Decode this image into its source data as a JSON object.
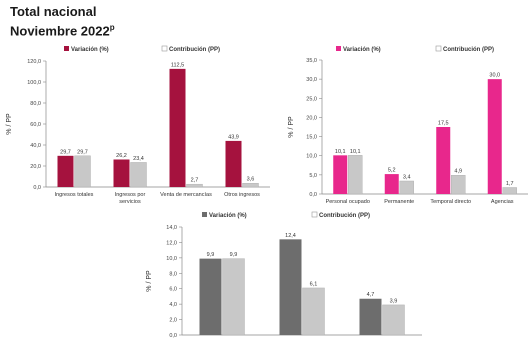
{
  "header": {
    "title": "Total nacional",
    "subtitle": "Noviembre 2022",
    "subtitle_sup": "p"
  },
  "colors": {
    "variacion_crimson": "#a5123e",
    "variacion_pink": "#e8278c",
    "variacion_gray": "#6d6d6d",
    "contribucion": "#c8c8c8"
  },
  "chart_data": [
    {
      "type": "bar",
      "title": "",
      "ylabel": "% / PP",
      "ylim": [
        0,
        120
      ],
      "yticks": [
        "0,0",
        "20,0",
        "40,0",
        "60,0",
        "80,0",
        "100,0",
        "120,0"
      ],
      "legend_placement": "top-left",
      "categories": [
        "Ingresos totales",
        "Ingresos por servicios",
        "Venta de mercancías",
        "Otros ingresos"
      ],
      "series": [
        {
          "name": "Variación (%)",
          "values": [
            29.7,
            26.2,
            112.5,
            43.9
          ],
          "labels": [
            "29,7",
            "26,2",
            "112,5",
            "43,9"
          ]
        },
        {
          "name": "Contribución (PP)",
          "values": [
            29.7,
            23.4,
            2.7,
            3.6
          ],
          "labels": [
            "29,7",
            "23,4",
            "2,7",
            "3,6"
          ]
        }
      ]
    },
    {
      "type": "bar",
      "title": "",
      "ylabel": "% / PP",
      "ylim": [
        0,
        35
      ],
      "yticks": [
        "0,0",
        "5,0",
        "10,0",
        "15,0",
        "20,0",
        "25,0",
        "30,0",
        "35,0"
      ],
      "legend_placement": "top",
      "categories": [
        "Personal ocupado total*",
        "Permanente",
        "Temporal directo",
        "Agencias"
      ],
      "series": [
        {
          "name": "Variación (%)",
          "values": [
            10.1,
            5.2,
            17.5,
            30.0
          ],
          "labels": [
            "10,1",
            "5,2",
            "17,5",
            "30,0"
          ]
        },
        {
          "name": "Contribución (PP)",
          "values": [
            10.1,
            3.4,
            4.9,
            1.7
          ],
          "labels": [
            "10,1",
            "3,4",
            "4,9",
            "1,7"
          ]
        }
      ]
    },
    {
      "type": "bar",
      "title": "",
      "ylabel": "% / PP",
      "ylim": [
        0,
        14
      ],
      "yticks": [
        "0,0",
        "2,0",
        "4,0",
        "6,0",
        "8,0",
        "10,0",
        "12,0",
        "14,0"
      ],
      "legend_placement": "top",
      "categories": [
        "",
        "",
        ""
      ],
      "series": [
        {
          "name": "Variación (%)",
          "values": [
            9.9,
            12.4,
            4.7
          ],
          "labels": [
            "9,9",
            "12,4",
            "4,7"
          ]
        },
        {
          "name": "Contribución (PP)",
          "values": [
            9.9,
            6.1,
            3.9
          ],
          "labels": [
            "9,9",
            "6,1",
            "3,9"
          ]
        }
      ]
    }
  ]
}
